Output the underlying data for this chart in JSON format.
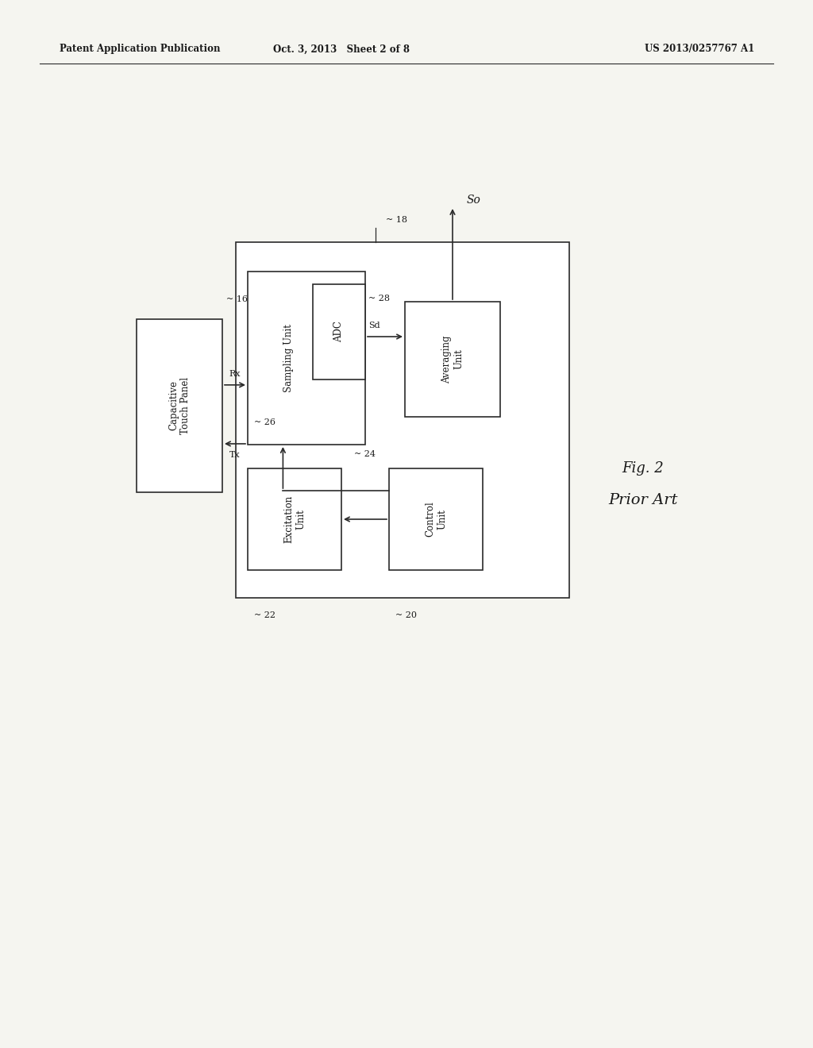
{
  "bg_color": "#f5f5f0",
  "header_left": "Patent Application Publication",
  "header_mid": "Oct. 3, 2013   Sheet 2 of 8",
  "header_right": "US 2013/0257767 A1",
  "fig_label": "Fig. 2",
  "fig_sublabel": "Prior Art",
  "line_color": "#2a2a2a",
  "text_color": "#1a1a1a",
  "font_size_box": 8.5,
  "font_size_header": 8.5,
  "font_size_ref": 8,
  "font_size_fig": 13
}
